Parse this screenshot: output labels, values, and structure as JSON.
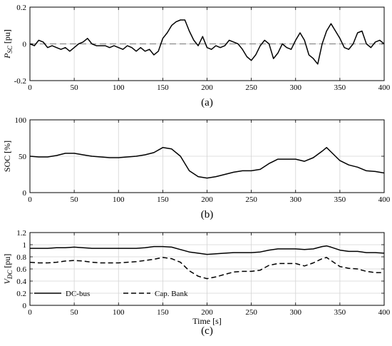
{
  "chart_data": [
    {
      "type": "line",
      "caption": "(a)",
      "ylabel": {
        "main": "P",
        "sub": "SC",
        "unit": " [pu]"
      },
      "xlabel": "",
      "xlim": [
        0,
        400
      ],
      "ylim": [
        -0.2,
        0.2
      ],
      "xticks": [
        0,
        50,
        100,
        150,
        200,
        250,
        300,
        350,
        400
      ],
      "yticks": [
        -0.2,
        0,
        0.2
      ],
      "ytick_labels": [
        "-0.2",
        "0",
        "0.2"
      ],
      "grid": true,
      "reference_line": {
        "y": 0,
        "style": "dashed"
      },
      "series": [
        {
          "style": "solid",
          "x": [
            0,
            5,
            10,
            15,
            20,
            25,
            30,
            35,
            40,
            45,
            50,
            55,
            60,
            65,
            70,
            75,
            80,
            85,
            90,
            95,
            100,
            105,
            110,
            115,
            120,
            125,
            130,
            135,
            140,
            145,
            150,
            155,
            160,
            165,
            170,
            175,
            180,
            185,
            190,
            195,
            200,
            205,
            210,
            215,
            220,
            225,
            230,
            235,
            240,
            245,
            250,
            255,
            260,
            265,
            270,
            275,
            280,
            285,
            290,
            295,
            300,
            305,
            310,
            315,
            320,
            325,
            330,
            335,
            340,
            345,
            350,
            355,
            360,
            365,
            370,
            375,
            380,
            385,
            390,
            395,
            400
          ],
          "y": [
            0.0,
            -0.01,
            0.02,
            0.01,
            -0.02,
            -0.01,
            -0.02,
            -0.03,
            -0.02,
            -0.04,
            -0.02,
            0.0,
            0.01,
            0.03,
            0.0,
            -0.01,
            -0.01,
            -0.01,
            -0.02,
            -0.01,
            -0.02,
            -0.03,
            -0.01,
            -0.02,
            -0.04,
            -0.02,
            -0.04,
            -0.03,
            -0.06,
            -0.04,
            0.03,
            0.06,
            0.1,
            0.12,
            0.13,
            0.13,
            0.07,
            0.02,
            -0.01,
            0.04,
            -0.02,
            -0.03,
            -0.01,
            -0.02,
            -0.01,
            0.02,
            0.01,
            0.0,
            -0.03,
            -0.07,
            -0.09,
            -0.06,
            -0.01,
            0.02,
            0.0,
            -0.08,
            -0.05,
            0.0,
            -0.02,
            -0.03,
            0.02,
            0.06,
            0.02,
            -0.06,
            -0.08,
            -0.11,
            0.0,
            0.07,
            0.11,
            0.07,
            0.03,
            -0.02,
            -0.03,
            0.0,
            0.06,
            0.07,
            0.0,
            -0.02,
            0.01,
            0.02,
            0.0
          ]
        }
      ]
    },
    {
      "type": "line",
      "caption": "(b)",
      "ylabel": "SOC [%]",
      "xlabel": "",
      "xlim": [
        0,
        400
      ],
      "ylim": [
        0,
        100
      ],
      "xticks": [
        0,
        50,
        100,
        150,
        200,
        250,
        300,
        350,
        400
      ],
      "yticks": [
        0,
        50,
        100
      ],
      "ytick_labels": [
        "0",
        "50",
        "100"
      ],
      "grid": true,
      "series": [
        {
          "style": "solid",
          "x": [
            0,
            10,
            20,
            30,
            40,
            50,
            60,
            70,
            80,
            90,
            100,
            110,
            120,
            130,
            140,
            150,
            160,
            170,
            180,
            190,
            200,
            210,
            220,
            230,
            240,
            250,
            260,
            270,
            280,
            290,
            300,
            310,
            320,
            330,
            335,
            340,
            350,
            360,
            370,
            380,
            390,
            400
          ],
          "y": [
            50,
            49,
            49,
            51,
            54,
            54,
            52,
            50,
            49,
            48,
            48,
            49,
            50,
            52,
            55,
            62,
            60,
            50,
            30,
            22,
            20,
            22,
            25,
            28,
            30,
            30,
            32,
            40,
            46,
            46,
            46,
            43,
            48,
            57,
            62,
            56,
            44,
            38,
            35,
            30,
            29,
            27
          ]
        }
      ]
    },
    {
      "type": "line",
      "caption": "(c)",
      "ylabel": {
        "main": "V",
        "sub": "DC",
        "unit": " [pu]"
      },
      "xlabel": "Time [s]",
      "xlim": [
        0,
        400
      ],
      "ylim": [
        0,
        1.2
      ],
      "xticks": [
        0,
        50,
        100,
        150,
        200,
        250,
        300,
        350,
        400
      ],
      "yticks": [
        0,
        0.2,
        0.4,
        0.6,
        0.8,
        1.0,
        1.2
      ],
      "ytick_labels": [
        "0",
        "0.2",
        "0.4",
        "0.6",
        "0.8",
        "1",
        "1.2"
      ],
      "grid": true,
      "legend": "bottom-left",
      "series": [
        {
          "name": "DC-bus",
          "style": "solid",
          "x": [
            0,
            10,
            20,
            30,
            40,
            50,
            60,
            70,
            80,
            90,
            100,
            110,
            120,
            130,
            140,
            150,
            160,
            170,
            180,
            190,
            200,
            210,
            220,
            230,
            240,
            250,
            260,
            270,
            280,
            290,
            300,
            310,
            320,
            330,
            335,
            340,
            350,
            360,
            370,
            380,
            390,
            400
          ],
          "y": [
            0.94,
            0.94,
            0.94,
            0.95,
            0.95,
            0.96,
            0.95,
            0.94,
            0.94,
            0.94,
            0.94,
            0.94,
            0.94,
            0.95,
            0.97,
            0.97,
            0.96,
            0.92,
            0.88,
            0.86,
            0.84,
            0.85,
            0.86,
            0.87,
            0.87,
            0.87,
            0.88,
            0.91,
            0.93,
            0.93,
            0.93,
            0.92,
            0.93,
            0.97,
            0.98,
            0.96,
            0.91,
            0.89,
            0.89,
            0.87,
            0.87,
            0.86
          ]
        },
        {
          "name": "Cap. Bank",
          "style": "dashed",
          "x": [
            0,
            10,
            20,
            30,
            40,
            50,
            60,
            70,
            80,
            90,
            100,
            110,
            120,
            130,
            140,
            150,
            160,
            170,
            180,
            190,
            200,
            210,
            220,
            230,
            240,
            250,
            260,
            270,
            280,
            290,
            300,
            310,
            320,
            330,
            335,
            340,
            350,
            360,
            370,
            380,
            390,
            400
          ],
          "y": [
            0.71,
            0.7,
            0.7,
            0.71,
            0.73,
            0.74,
            0.73,
            0.71,
            0.7,
            0.7,
            0.7,
            0.71,
            0.72,
            0.74,
            0.76,
            0.79,
            0.77,
            0.71,
            0.57,
            0.48,
            0.44,
            0.47,
            0.51,
            0.55,
            0.56,
            0.56,
            0.58,
            0.66,
            0.69,
            0.69,
            0.69,
            0.65,
            0.7,
            0.77,
            0.79,
            0.74,
            0.64,
            0.61,
            0.6,
            0.56,
            0.54,
            0.54
          ]
        }
      ]
    }
  ]
}
